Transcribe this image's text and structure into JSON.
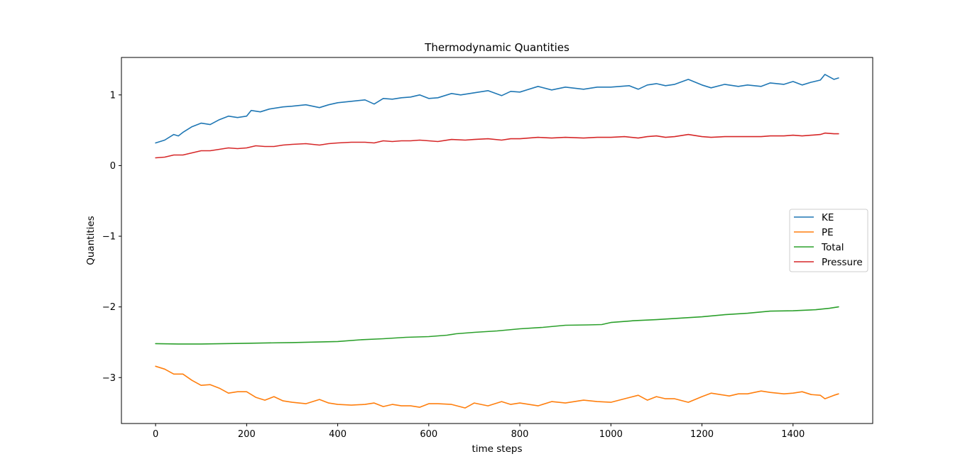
{
  "chart_data": {
    "type": "line",
    "title": "Thermodynamic Quantities",
    "xlabel": "time steps",
    "ylabel": "Quantities",
    "xlim": [
      -75,
      1575
    ],
    "ylim": [
      -3.65,
      1.53
    ],
    "x_ticks": [
      0,
      200,
      400,
      600,
      800,
      1000,
      1200,
      1400
    ],
    "y_ticks": [
      -3,
      -2,
      -1,
      0,
      1
    ],
    "y_tick_labels": [
      "−3",
      "−2",
      "−1",
      "0",
      "1"
    ],
    "grid": false,
    "legend_position": "center-right",
    "series": [
      {
        "name": "KE",
        "color": "#1f77b4",
        "x": [
          0,
          20,
          40,
          50,
          60,
          80,
          100,
          120,
          140,
          160,
          180,
          200,
          210,
          230,
          250,
          280,
          300,
          330,
          360,
          380,
          400,
          430,
          460,
          480,
          500,
          520,
          540,
          560,
          580,
          600,
          620,
          650,
          670,
          700,
          730,
          760,
          780,
          800,
          840,
          870,
          900,
          940,
          970,
          1000,
          1040,
          1060,
          1080,
          1100,
          1120,
          1140,
          1170,
          1200,
          1220,
          1250,
          1280,
          1300,
          1330,
          1350,
          1380,
          1400,
          1420,
          1440,
          1460,
          1470,
          1490,
          1500
        ],
        "y": [
          0.32,
          0.36,
          0.44,
          0.42,
          0.47,
          0.55,
          0.6,
          0.58,
          0.65,
          0.7,
          0.68,
          0.7,
          0.78,
          0.76,
          0.8,
          0.83,
          0.84,
          0.86,
          0.82,
          0.86,
          0.89,
          0.91,
          0.93,
          0.87,
          0.95,
          0.94,
          0.96,
          0.97,
          1.0,
          0.95,
          0.96,
          1.02,
          1.0,
          1.03,
          1.06,
          0.99,
          1.05,
          1.04,
          1.12,
          1.07,
          1.11,
          1.08,
          1.11,
          1.11,
          1.13,
          1.08,
          1.14,
          1.16,
          1.13,
          1.15,
          1.22,
          1.14,
          1.1,
          1.15,
          1.12,
          1.14,
          1.12,
          1.17,
          1.15,
          1.19,
          1.14,
          1.18,
          1.21,
          1.29,
          1.22,
          1.24
        ]
      },
      {
        "name": "PE",
        "color": "#ff7f0e",
        "x": [
          0,
          20,
          40,
          60,
          80,
          100,
          120,
          140,
          160,
          180,
          200,
          220,
          240,
          260,
          280,
          300,
          330,
          360,
          380,
          400,
          430,
          460,
          480,
          500,
          520,
          540,
          560,
          580,
          600,
          620,
          650,
          680,
          700,
          730,
          760,
          780,
          800,
          840,
          870,
          900,
          940,
          970,
          1000,
          1030,
          1060,
          1080,
          1100,
          1120,
          1140,
          1170,
          1200,
          1220,
          1240,
          1260,
          1280,
          1300,
          1330,
          1350,
          1380,
          1400,
          1420,
          1440,
          1460,
          1470,
          1490,
          1500
        ],
        "y": [
          -2.84,
          -2.88,
          -2.95,
          -2.95,
          -3.04,
          -3.11,
          -3.1,
          -3.15,
          -3.22,
          -3.2,
          -3.2,
          -3.28,
          -3.32,
          -3.27,
          -3.33,
          -3.35,
          -3.37,
          -3.31,
          -3.36,
          -3.38,
          -3.39,
          -3.38,
          -3.36,
          -3.41,
          -3.38,
          -3.4,
          -3.4,
          -3.42,
          -3.37,
          -3.37,
          -3.38,
          -3.43,
          -3.36,
          -3.4,
          -3.34,
          -3.38,
          -3.36,
          -3.4,
          -3.34,
          -3.36,
          -3.32,
          -3.34,
          -3.35,
          -3.3,
          -3.25,
          -3.32,
          -3.27,
          -3.3,
          -3.3,
          -3.35,
          -3.27,
          -3.22,
          -3.24,
          -3.26,
          -3.23,
          -3.23,
          -3.19,
          -3.21,
          -3.23,
          -3.22,
          -3.2,
          -3.24,
          -3.25,
          -3.3,
          -3.25,
          -3.23
        ]
      },
      {
        "name": "Total",
        "color": "#2ca02c",
        "x": [
          0,
          50,
          100,
          200,
          300,
          400,
          450,
          500,
          550,
          600,
          640,
          660,
          700,
          750,
          800,
          850,
          900,
          950,
          980,
          1000,
          1050,
          1100,
          1150,
          1200,
          1250,
          1300,
          1350,
          1400,
          1450,
          1480,
          1500
        ],
        "y": [
          -2.52,
          -2.525,
          -2.525,
          -2.515,
          -2.505,
          -2.49,
          -2.465,
          -2.45,
          -2.43,
          -2.42,
          -2.4,
          -2.38,
          -2.36,
          -2.34,
          -2.31,
          -2.29,
          -2.26,
          -2.255,
          -2.25,
          -2.22,
          -2.195,
          -2.18,
          -2.16,
          -2.14,
          -2.11,
          -2.09,
          -2.06,
          -2.055,
          -2.04,
          -2.02,
          -2.0
        ]
      },
      {
        "name": "Pressure",
        "color": "#d62728",
        "x": [
          0,
          20,
          40,
          60,
          80,
          100,
          120,
          140,
          160,
          180,
          200,
          220,
          240,
          260,
          280,
          300,
          330,
          360,
          380,
          400,
          430,
          460,
          480,
          500,
          520,
          540,
          560,
          580,
          600,
          620,
          650,
          680,
          700,
          730,
          760,
          780,
          800,
          840,
          870,
          900,
          940,
          970,
          1000,
          1030,
          1060,
          1080,
          1100,
          1120,
          1140,
          1170,
          1200,
          1220,
          1250,
          1280,
          1300,
          1330,
          1350,
          1380,
          1400,
          1420,
          1440,
          1460,
          1470,
          1490,
          1500
        ],
        "y": [
          0.11,
          0.12,
          0.15,
          0.15,
          0.18,
          0.21,
          0.21,
          0.23,
          0.25,
          0.24,
          0.25,
          0.28,
          0.27,
          0.27,
          0.29,
          0.3,
          0.31,
          0.29,
          0.31,
          0.32,
          0.33,
          0.33,
          0.32,
          0.35,
          0.34,
          0.35,
          0.35,
          0.36,
          0.35,
          0.34,
          0.37,
          0.36,
          0.37,
          0.38,
          0.36,
          0.38,
          0.38,
          0.4,
          0.39,
          0.4,
          0.39,
          0.4,
          0.4,
          0.41,
          0.39,
          0.41,
          0.42,
          0.4,
          0.41,
          0.44,
          0.41,
          0.4,
          0.41,
          0.41,
          0.41,
          0.41,
          0.42,
          0.42,
          0.43,
          0.42,
          0.43,
          0.44,
          0.46,
          0.45,
          0.45
        ]
      }
    ]
  }
}
